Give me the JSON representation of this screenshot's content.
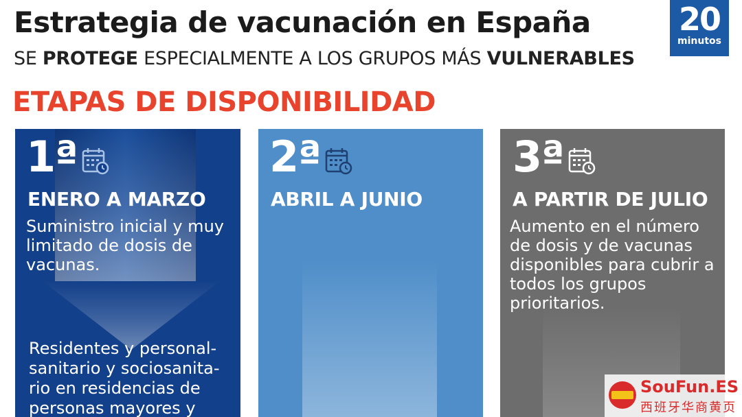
{
  "header": {
    "title": "Estrategia de vacunación en España",
    "subtitle_parts": [
      "SE ",
      "PROTEGE",
      " ESPECIALMENTE A LOS GRUPOS MÁS ",
      "VULNERABLES"
    ]
  },
  "logo": {
    "number": "20",
    "word": "minutos",
    "color": "#1d5aa6"
  },
  "section_title": "ETAPAS DE DISPONIBILIDAD",
  "stages": [
    {
      "ordinal": "1ª",
      "period": "ENERO A MARZO",
      "description": "Suministro inicial y muy limitado de dosis de vacunas.",
      "groups": "Residentes y personal-sanitario y sociosanita-rio en residencias de personas mayores y",
      "icon": "calendar-icon",
      "color": "#13408a"
    },
    {
      "ordinal": "2ª",
      "period": "ABRIL A JUNIO",
      "icon": "calendar-icon",
      "color": "#4f8ec9"
    },
    {
      "ordinal": "3ª",
      "period": "A PARTIR DE JULIO",
      "description": "Aumento en el número de dosis y de vacunas disponibles para cubrir a todos los grupos prioritarios.",
      "icon": "calendar-icon",
      "color": "#6d6d6d"
    }
  ],
  "watermark": {
    "brand": "SouFun.ES",
    "sub": "西班牙华商黄页"
  },
  "colors": {
    "section_red": "#e8432c"
  }
}
